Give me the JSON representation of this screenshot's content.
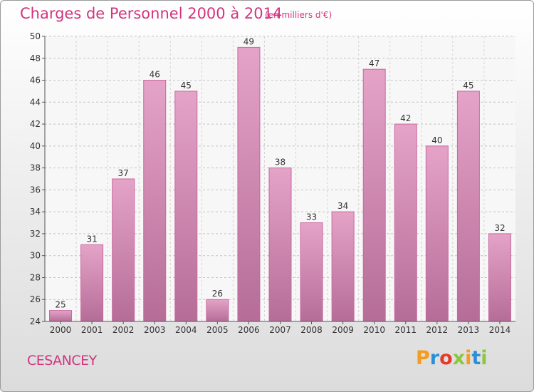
{
  "header": {
    "title": "Charges de Personnel 2000 à 2014",
    "subtitle": "(en milliers d'€)"
  },
  "footer": {
    "commune": "CESANCEY"
  },
  "logo": {
    "letters": [
      "P",
      "r",
      "o",
      "x",
      "i",
      "t",
      "i"
    ],
    "colors": [
      "#f59b1f",
      "#2a8fd6",
      "#e53a2b",
      "#8cc63f",
      "#f59b1f",
      "#2a8fd6",
      "#8cc63f"
    ]
  },
  "chart_data": {
    "type": "bar",
    "title": "Charges de Personnel 2000 à 2014",
    "subtitle": "(en milliers d'€)",
    "categories": [
      "2000",
      "2001",
      "2002",
      "2003",
      "2004",
      "2005",
      "2006",
      "2007",
      "2008",
      "2009",
      "2010",
      "2011",
      "2012",
      "2013",
      "2014"
    ],
    "values": [
      25,
      31,
      37,
      46,
      45,
      26,
      49,
      38,
      33,
      34,
      47,
      42,
      40,
      45,
      32
    ],
    "data_labels": [
      "25",
      "31",
      "37",
      "46",
      "45",
      "26",
      "49",
      "38",
      "33",
      "34",
      "47",
      "42",
      "40",
      "45",
      "32"
    ],
    "ylim": [
      24,
      50
    ],
    "yticks": [
      "24",
      "26",
      "28",
      "30",
      "32",
      "34",
      "36",
      "38",
      "40",
      "42",
      "44",
      "46",
      "48",
      "50"
    ],
    "grid": true,
    "bar_color": "#e5a3c8",
    "bar_color_dark": "#b56d98",
    "bar_edge": "#c8689e"
  }
}
